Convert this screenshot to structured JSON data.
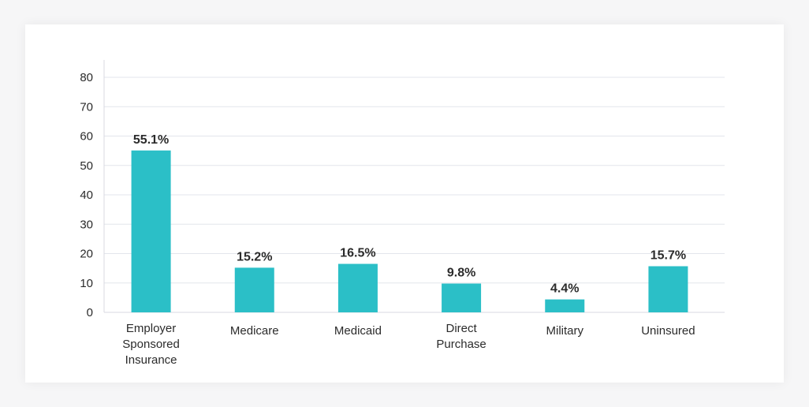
{
  "chart_data": {
    "type": "bar",
    "title": "",
    "xlabel": "",
    "ylabel": "",
    "ylim": [
      0,
      80
    ],
    "yticks": [
      0,
      10,
      20,
      30,
      40,
      50,
      60,
      70,
      80
    ],
    "grid": true,
    "categories": [
      [
        "Employer",
        "Sponsored",
        "Insurance"
      ],
      [
        "Medicare"
      ],
      [
        "Medicaid"
      ],
      [
        "Direct",
        "Purchase"
      ],
      [
        "Military"
      ],
      [
        "Uninsured"
      ]
    ],
    "values": [
      55.1,
      15.2,
      16.5,
      9.8,
      4.4,
      15.7
    ],
    "data_labels": [
      "55.1%",
      "15.2%",
      "16.5%",
      "9.8%",
      "4.4%",
      "15.7%"
    ],
    "bar_color": "#2bbfc7"
  }
}
